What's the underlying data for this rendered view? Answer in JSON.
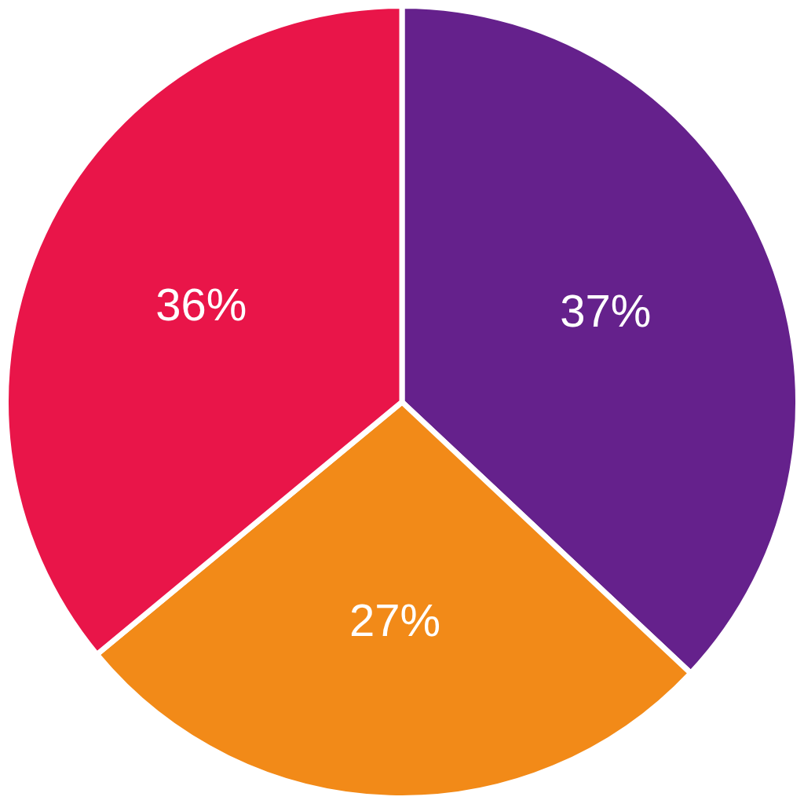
{
  "chart_data": {
    "type": "pie",
    "values": [
      37,
      27,
      36
    ],
    "value_labels": [
      "37%",
      "27%",
      "36%"
    ],
    "colors": [
      "#65218c",
      "#f28a18",
      "#e91549"
    ],
    "data_labels": true
  }
}
